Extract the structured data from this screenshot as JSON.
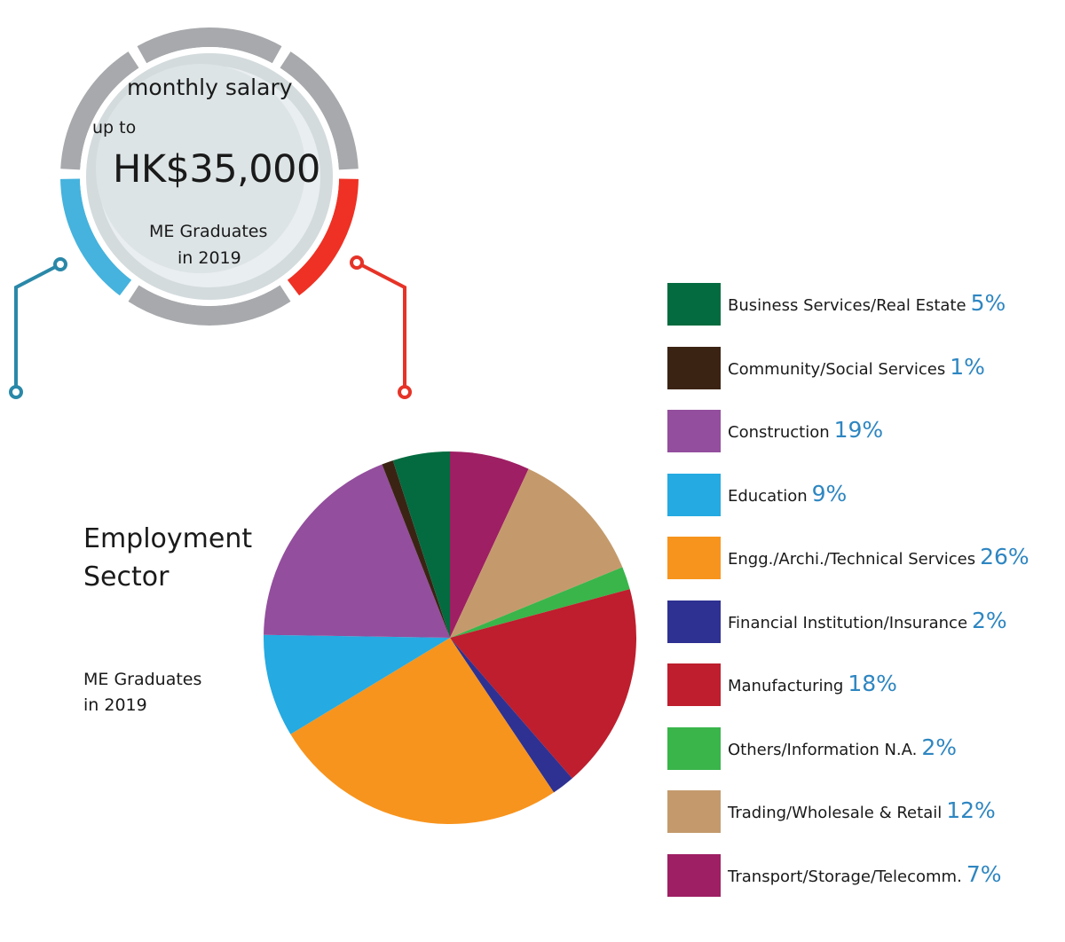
{
  "salary_badge": {
    "heading": "monthly salary",
    "prefix": "up to",
    "amount": "HK$35,000",
    "group_line1": "ME Graduates",
    "group_line2": "in 2019",
    "colors": {
      "ring_gray": "#a7a9ac",
      "ring_blue": "#45b3dd",
      "ring_red": "#ee3124",
      "connector_blue": "#2a88a8",
      "connector_red": "#e63327",
      "inner": "#dfe4e6"
    }
  },
  "pie_section": {
    "title_line1": "Employment",
    "title_line2": "Sector",
    "sub_line1": "ME Graduates",
    "sub_line2": "in 2019"
  },
  "chart_data": {
    "type": "pie",
    "title": "Employment Sector",
    "unit": "%",
    "legend_position": "right",
    "slices": [
      {
        "label": "Business Services/Real Estate",
        "value": 5,
        "display": "5%",
        "color": "#036b3f"
      },
      {
        "label": "Community/Social Services",
        "value": 1,
        "display": "1%",
        "color": "#3b2314"
      },
      {
        "label": "Construction",
        "value": 19,
        "display": "19%",
        "color": "#934e9d"
      },
      {
        "label": "Education",
        "value": 9,
        "display": "9%",
        "color": "#25aae1"
      },
      {
        "label": "Engg./Archi./Technical Services",
        "value": 26,
        "display": "26%",
        "color": "#f7941d"
      },
      {
        "label": "Financial Institution/Insurance",
        "value": 2,
        "display": "2%",
        "color": "#2e3191"
      },
      {
        "label": "Manufacturing",
        "value": 18,
        "display": "18%",
        "color": "#be1e2d"
      },
      {
        "label": "Others/Information N.A.",
        "value": 2,
        "display": "2%",
        "color": "#39b54a"
      },
      {
        "label": "Trading/Wholesale & Retail",
        "value": 12,
        "display": "12%",
        "color": "#c49a6c"
      },
      {
        "label": "Transport/Storage/Telecomm.",
        "value": 7,
        "display": "7%",
        "color": "#9e1f63"
      }
    ],
    "pie_order_clockwise_from_top": [
      9,
      8,
      7,
      6,
      5,
      4,
      3,
      2,
      1,
      0
    ]
  }
}
